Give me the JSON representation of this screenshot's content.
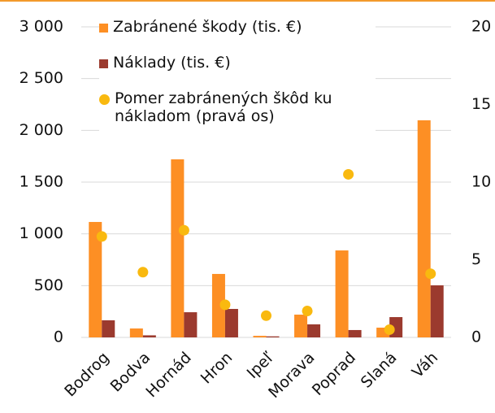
{
  "chart_data": {
    "type": "bar",
    "categories": [
      "Bodrog",
      "Bodva",
      "Hornád",
      "Hron",
      "Ipeľ",
      "Morava",
      "Poprad",
      "Slaná",
      "Váh"
    ],
    "series": [
      {
        "name": "Zabránené škody (tis. €)",
        "color": "#fd8f24",
        "values": [
          1115,
          86,
          1720,
          613,
          15,
          220,
          840,
          94,
          2097
        ]
      },
      {
        "name": "Náklady (tis. €)",
        "color": "#9b3a2e",
        "values": [
          165,
          20,
          243,
          275,
          10,
          126,
          71,
          196,
          503
        ]
      },
      {
        "name": "Pomer zabránených škôd ku nákladom (pravá os)",
        "color": "#f9b90f",
        "type": "scatter",
        "axis": "y2",
        "values": [
          6.5,
          4.2,
          6.9,
          2.1,
          1.4,
          1.7,
          10.5,
          0.5,
          4.1
        ]
      }
    ],
    "ylim": [
      0,
      3000
    ],
    "yticks": [
      0,
      500,
      {
        "value": 1000,
        "label": "1 000"
      },
      {
        "value": 1500,
        "label": "1 500"
      },
      {
        "value": 2000,
        "label": "2 000"
      },
      {
        "value": 2500,
        "label": "2 500"
      },
      {
        "value": 3000,
        "label": "3 000"
      }
    ],
    "y2lim": [
      0,
      20
    ],
    "y2ticks": [
      0,
      5,
      10,
      15,
      20
    ],
    "grid": true
  }
}
